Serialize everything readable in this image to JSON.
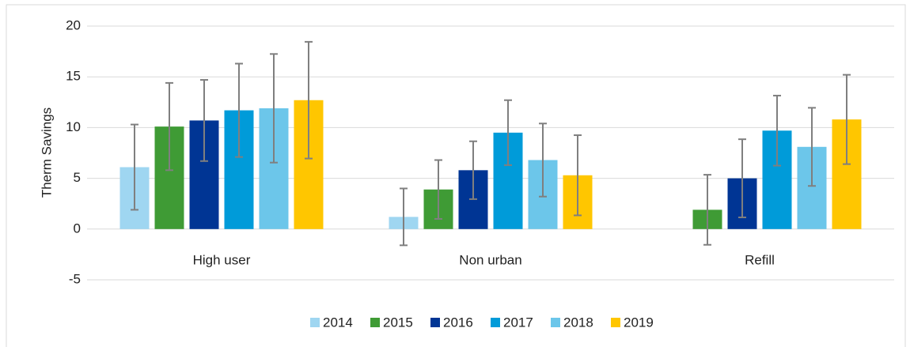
{
  "chart_data": {
    "type": "bar",
    "y_label": "Therm Savings",
    "categories": [
      "High user",
      "Non urban",
      "Refill"
    ],
    "series": [
      {
        "name": "2014",
        "color": "#9fd6f1",
        "values": [
          6.1,
          1.2,
          0
        ],
        "errors": [
          4.2,
          2.8,
          null
        ]
      },
      {
        "name": "2015",
        "color": "#3f9b35",
        "values": [
          10.1,
          3.9,
          1.9
        ],
        "errors": [
          4.3,
          2.9,
          3.45
        ]
      },
      {
        "name": "2016",
        "color": "#003594",
        "values": [
          10.7,
          5.8,
          5.0
        ],
        "errors": [
          4.0,
          2.85,
          3.85
        ]
      },
      {
        "name": "2017",
        "color": "#009bd9",
        "values": [
          11.7,
          9.5,
          9.7
        ],
        "errors": [
          4.6,
          3.2,
          3.45
        ]
      },
      {
        "name": "2018",
        "color": "#6cc6ea",
        "values": [
          11.9,
          6.8,
          8.1
        ],
        "errors": [
          5.35,
          3.6,
          3.85
        ]
      },
      {
        "name": "2019",
        "color": "#ffc600",
        "values": [
          12.7,
          5.3,
          10.8
        ],
        "errors": [
          5.75,
          3.95,
          4.4
        ]
      }
    ],
    "error_color": "#7f7f7f",
    "ylim": [
      -5,
      20
    ],
    "yticks": [
      -5,
      0,
      5,
      10,
      15,
      20
    ],
    "grid": true,
    "legend": "bottom"
  }
}
